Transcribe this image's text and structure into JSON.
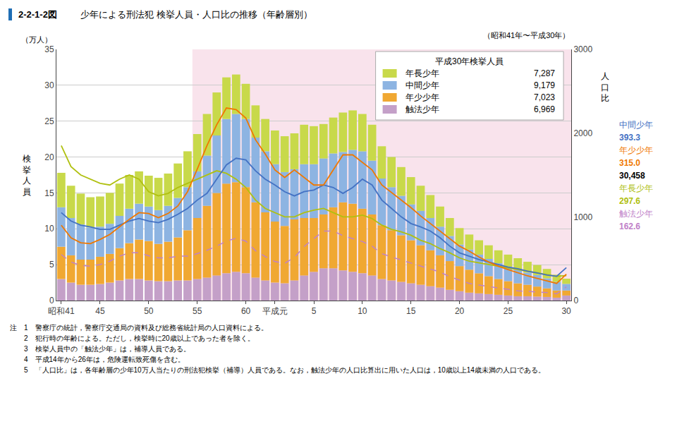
{
  "chart_data": {
    "type": "bar",
    "title_prefix": "2-2-1-2図",
    "title": "少年による刑法犯 検挙人員・人口比の推移（年齢層別）",
    "subtitle": "（昭和41年〜平成30年）",
    "ylabel": "検\n挙\n人\n員",
    "y2label": "人\n口\n比",
    "y_unit": "（万人）",
    "categories": [
      "昭和41",
      null,
      null,
      null,
      "45",
      null,
      null,
      null,
      null,
      "50",
      null,
      null,
      null,
      null,
      "55",
      null,
      null,
      null,
      null,
      "60",
      null,
      null,
      "平成元",
      null,
      null,
      null,
      "5",
      null,
      null,
      null,
      null,
      "10",
      null,
      null,
      null,
      null,
      "15",
      null,
      null,
      null,
      null,
      "20",
      null,
      null,
      null,
      null,
      "25",
      null,
      null,
      null,
      null,
      null,
      "30"
    ],
    "stacked": true,
    "grid": true,
    "ylim": [
      0,
      35
    ],
    "yticks": [
      0,
      5,
      10,
      15,
      20,
      25,
      30,
      35
    ],
    "y2lim": [
      0,
      3000
    ],
    "y2ticks": [
      0,
      1000,
      2000,
      3000
    ],
    "shading": {
      "from": "55",
      "color": "#f5d0e0"
    },
    "legend": "upper right",
    "legend_title": "平成30年検挙人員",
    "series": [
      {
        "name": "触法少年",
        "type": "bar",
        "color": "#c4a0c8",
        "legend_value": "6,969",
        "values": [
          3.0,
          2.5,
          2.2,
          2.2,
          2.3,
          2.5,
          2.8,
          3.0,
          3.0,
          2.8,
          2.7,
          2.7,
          2.8,
          2.8,
          3.0,
          3.2,
          3.5,
          3.8,
          4.0,
          3.8,
          3.2,
          2.8,
          2.5,
          2.4,
          2.8,
          3.5,
          4.0,
          4.5,
          4.5,
          4.2,
          4.0,
          3.8,
          3.5,
          3.0,
          2.8,
          2.6,
          2.4,
          2.2,
          2.0,
          1.8,
          1.5,
          1.3,
          1.1,
          1.0,
          0.9,
          0.8,
          0.7,
          0.6,
          0.6,
          0.55,
          0.5,
          0.4,
          0.7
        ]
      },
      {
        "name": "年少少年",
        "type": "bar",
        "color": "#f0a832",
        "legend_value": "7,023",
        "values": [
          4.5,
          3.8,
          3.5,
          3.5,
          3.8,
          4.0,
          4.5,
          5.0,
          5.5,
          5.5,
          5.2,
          5.5,
          6.0,
          7.0,
          8.5,
          10.0,
          11.5,
          12.5,
          12.5,
          12.0,
          10.5,
          9.5,
          8.5,
          8.0,
          8.5,
          8.0,
          7.5,
          7.5,
          8.5,
          9.5,
          9.5,
          9.0,
          8.5,
          7.5,
          7.0,
          6.5,
          6.0,
          5.5,
          5.0,
          4.5,
          4.0,
          3.5,
          3.2,
          2.8,
          2.5,
          2.2,
          2.0,
          1.8,
          1.6,
          1.4,
          1.2,
          1.0,
          0.7
        ]
      },
      {
        "name": "中間少年",
        "type": "bar",
        "color": "#8db4e2",
        "legend_value": "9,179",
        "values": [
          5.5,
          5.2,
          4.9,
          4.5,
          4.2,
          4.2,
          4.5,
          4.8,
          5.0,
          4.8,
          4.7,
          5.0,
          5.5,
          6.0,
          6.5,
          7.0,
          8.0,
          9.0,
          9.5,
          9.5,
          9.0,
          8.5,
          8.0,
          7.5,
          7.0,
          7.5,
          7.5,
          7.8,
          7.5,
          7.0,
          7.5,
          8.0,
          7.5,
          6.5,
          6.0,
          5.5,
          5.0,
          4.8,
          4.5,
          4.0,
          3.5,
          3.0,
          2.8,
          2.6,
          2.4,
          2.2,
          2.0,
          1.9,
          1.7,
          1.6,
          1.4,
          1.2,
          0.92
        ]
      },
      {
        "name": "年長少年",
        "type": "bar",
        "color": "#c8d94a",
        "legend_value": "7,287",
        "values": [
          4.8,
          4.5,
          4.3,
          4.2,
          4.2,
          4.3,
          4.5,
          4.7,
          4.5,
          4.3,
          4.5,
          4.5,
          4.8,
          5.0,
          5.2,
          5.8,
          6.0,
          5.8,
          5.5,
          4.9,
          4.5,
          4.5,
          4.7,
          5.0,
          5.0,
          5.5,
          5.3,
          4.8,
          5.0,
          5.5,
          5.5,
          5.2,
          5.0,
          4.5,
          4.2,
          4.0,
          3.8,
          3.5,
          3.2,
          2.8,
          2.5,
          2.3,
          2.1,
          2.0,
          1.9,
          1.8,
          1.7,
          1.6,
          1.5,
          1.4,
          1.3,
          1.0,
          0.73
        ]
      },
      {
        "type": "line",
        "axis": "y2",
        "color": "#b0c010",
        "line_style": "solid",
        "values": [
          1850,
          1600,
          1500,
          1450,
          1400,
          1380,
          1450,
          1500,
          1450,
          1300,
          1250,
          1280,
          1350,
          1400,
          1450,
          1500,
          1550,
          1520,
          1450,
          1350,
          1200,
          1100,
          1050,
          1000,
          1000,
          1050,
          1080,
          1100,
          1050,
          1000,
          1000,
          1020,
          980,
          900,
          850,
          820,
          780,
          720,
          680,
          620,
          570,
          510,
          470,
          450,
          430,
          410,
          390,
          370,
          350,
          330,
          310,
          290,
          298
        ]
      },
      {
        "type": "line",
        "axis": "y2",
        "color": "#4472c4",
        "line_style": "solid",
        "values": [
          1050,
          950,
          900,
          880,
          850,
          850,
          900,
          950,
          980,
          950,
          930,
          970,
          1030,
          1100,
          1200,
          1280,
          1450,
          1620,
          1700,
          1680,
          1550,
          1450,
          1380,
          1300,
          1250,
          1300,
          1320,
          1380,
          1350,
          1280,
          1350,
          1450,
          1380,
          1200,
          1100,
          1000,
          920,
          880,
          830,
          750,
          650,
          570,
          530,
          490,
          460,
          430,
          400,
          380,
          350,
          330,
          305,
          290,
          393
        ]
      },
      {
        "type": "line",
        "axis": "y2",
        "color": "#f07800",
        "line_style": "solid",
        "values": [
          900,
          750,
          690,
          680,
          730,
          790,
          880,
          970,
          1050,
          1040,
          990,
          1040,
          1130,
          1300,
          1570,
          1850,
          2100,
          2300,
          2280,
          2180,
          1920,
          1750,
          1560,
          1470,
          1560,
          1470,
          1380,
          1380,
          1560,
          1740,
          1740,
          1650,
          1560,
          1380,
          1290,
          1200,
          1110,
          1010,
          920,
          830,
          740,
          650,
          590,
          520,
          460,
          410,
          370,
          330,
          295,
          265,
          235,
          205,
          315
        ]
      },
      {
        "type": "line",
        "axis": "y2",
        "color": "#c080c8",
        "line_style": "dashed",
        "values": [
          550,
          460,
          420,
          410,
          430,
          470,
          530,
          570,
          570,
          535,
          510,
          510,
          530,
          530,
          560,
          600,
          650,
          710,
          745,
          710,
          595,
          525,
          465,
          445,
          515,
          645,
          740,
          830,
          830,
          775,
          740,
          705,
          650,
          560,
          520,
          485,
          445,
          410,
          375,
          340,
          285,
          245,
          205,
          185,
          165,
          150,
          135,
          115,
          110,
          105,
          95,
          80,
          163
        ]
      }
    ],
    "annotations": [
      {
        "text": "中間少年",
        "color": "#4472c4",
        "bold": false
      },
      {
        "text": "393.3",
        "color": "#4472c4",
        "bold": true
      },
      {
        "text": "年少少年",
        "color": "#f07800",
        "bold": false
      },
      {
        "text": "315.0",
        "color": "#f07800",
        "bold": true
      },
      {
        "text": "30,458",
        "color": "black",
        "bold": true
      },
      {
        "text": "年長少年",
        "color": "#b0c010",
        "bold": false
      },
      {
        "text": "297.6",
        "color": "#b0c010",
        "bold": true
      },
      {
        "text": "触法少年",
        "color": "#c080c8",
        "bold": false
      },
      {
        "text": "162.6",
        "color": "#c080c8",
        "bold": true
      }
    ],
    "notes": [
      "注　1　警察庁の統計，警察庁交通局の資料及び総務省統計局の人口資料による。",
      "　　2　犯行時の年齢による。ただし，検挙時に20歳以上であった者を除く。",
      "　　3　検挙人員中の「触法少年」は，補導人員である。",
      "　　4　平成14年から26年は，危険運転致死傷を含む。",
      "　　5　「人口比」は，各年齢層の少年10万人当たりの刑法犯検挙（補導）人員である。なお，触法少年の人口比算出に用いた人口は，10歳以上14歳未満の人口である。"
    ]
  }
}
